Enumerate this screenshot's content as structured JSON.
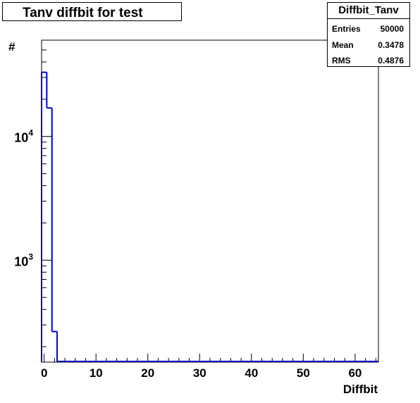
{
  "title": "Tanv diffbit for test",
  "stats": {
    "name": "Diffbit_Tanv",
    "rows": [
      {
        "label": "Entries",
        "value": "50000"
      },
      {
        "label": "Mean",
        "value": "0.3478"
      },
      {
        "label": "RMS",
        "value": "0.4876"
      }
    ]
  },
  "chart_data": {
    "type": "bar",
    "xlabel": "Diffbit",
    "ylabel": "#",
    "xlim": [
      -0.5,
      64.5
    ],
    "ylim": [
      150,
      60000
    ],
    "yscale": "log",
    "line_color": "#0000cc",
    "bins": [
      {
        "x0": -0.5,
        "x1": 0.5,
        "value": 33000
      },
      {
        "x0": 0.5,
        "x1": 1.5,
        "value": 17000
      },
      {
        "x0": 1.5,
        "x1": 2.5,
        "value": 265
      }
    ],
    "xticks": [
      0,
      10,
      20,
      30,
      40,
      50,
      60
    ],
    "xtick_labels": [
      "0",
      "10",
      "20",
      "30",
      "40",
      "50",
      "60"
    ],
    "yticks": [
      {
        "base": "10",
        "exp": "3",
        "value": 1000
      },
      {
        "base": "10",
        "exp": "4",
        "value": 10000
      }
    ]
  }
}
